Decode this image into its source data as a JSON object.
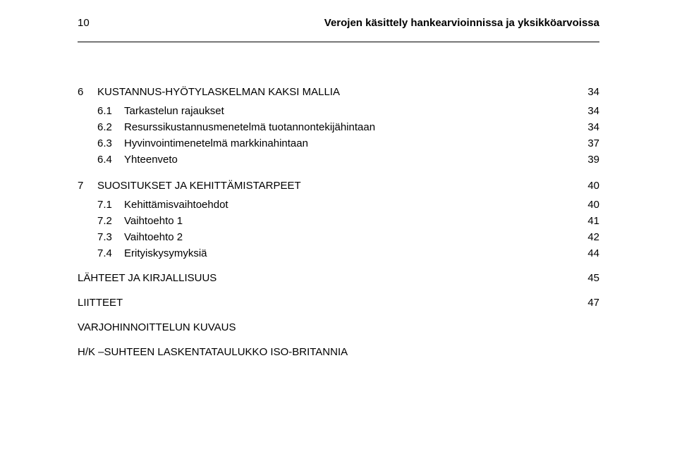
{
  "header": {
    "page_number": "10",
    "title": "Verojen käsittely hankearvioinnissa ja yksikköarvoissa"
  },
  "toc": {
    "s6": {
      "num": "6",
      "title": "KUSTANNUS-HYÖTYLASKELMAN KAKSI MALLIA",
      "page": "34",
      "items": [
        {
          "num": "6.1",
          "title": "Tarkastelun rajaukset",
          "page": "34"
        },
        {
          "num": "6.2",
          "title": "Resurssikustannusmenetelmä tuotannontekijähintaan",
          "page": "34"
        },
        {
          "num": "6.3",
          "title": "Hyvinvointimenetelmä markkinahintaan",
          "page": "37"
        },
        {
          "num": "6.4",
          "title": "Yhteenveto",
          "page": "39"
        }
      ]
    },
    "s7": {
      "num": "7",
      "title": "SUOSITUKSET JA KEHITTÄMISTARPEET",
      "page": "40",
      "items": [
        {
          "num": "7.1",
          "title": "Kehittämisvaihtoehdot",
          "page": "40"
        },
        {
          "num": "7.2",
          "title": "Vaihtoehto 1",
          "page": "41"
        },
        {
          "num": "7.3",
          "title": "Vaihtoehto 2",
          "page": "42"
        },
        {
          "num": "7.4",
          "title": "Erityiskysymyksiä",
          "page": "44"
        }
      ]
    },
    "refs": {
      "title": "LÄHTEET JA KIRJALLISUUS",
      "page": "45"
    },
    "appx": {
      "title": "LIITTEET",
      "page": "47"
    },
    "extra1": {
      "title": "VARJOHINNOITTELUN KUVAUS"
    },
    "extra2": {
      "title": "H/K –SUHTEEN LASKENTATAULUKKO ISO-BRITANNIA"
    }
  }
}
